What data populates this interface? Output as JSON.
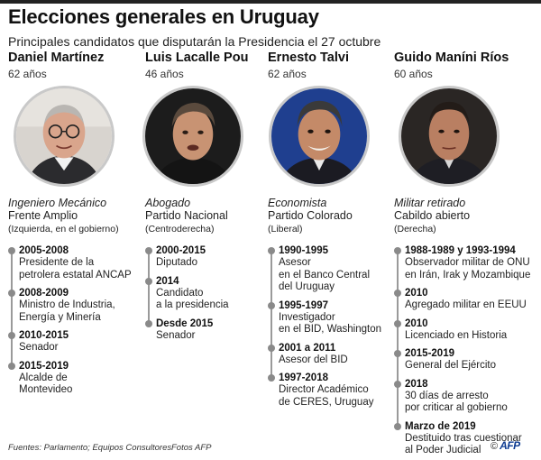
{
  "title": "Elecciones generales en Uruguay",
  "subtitle": "Principales candidatos que disputarán la Presidencia el 27 octubre",
  "candidates": [
    {
      "name": "Daniel Martínez",
      "age": "62 años",
      "profession": "Ingeniero Mecánico",
      "party": "Frente Amplio",
      "ideology": "(Izquierda, en el gobierno)",
      "events": [
        {
          "period": "2005-2008",
          "desc": "Presidente de la\npetrolera estatal ANCAP"
        },
        {
          "period": "2008-2009",
          "desc": "Ministro de Industria,\nEnergía y Minería"
        },
        {
          "period": "2010-2015",
          "desc": "Senador"
        },
        {
          "period": "2015-2019",
          "desc": "Alcalde de\nMontevideo"
        }
      ]
    },
    {
      "name": "Luis Lacalle Pou",
      "age": "46 años",
      "profession": "Abogado",
      "party": "Partido Nacional",
      "ideology": "(Centroderecha)",
      "events": [
        {
          "period": "2000-2015",
          "desc": "Diputado"
        },
        {
          "period": "2014",
          "desc": "Candidato\na la presidencia"
        },
        {
          "period": "Desde 2015",
          "desc": "Senador"
        }
      ]
    },
    {
      "name": "Ernesto Talvi",
      "age": "62 años",
      "profession": "Economista",
      "party": "Partido Colorado",
      "ideology": "(Liberal)",
      "events": [
        {
          "period": "1990-1995",
          "desc": "Asesor\nen el Banco Central\ndel Uruguay"
        },
        {
          "period": "1995-1997",
          "desc": "Investigador\nen el BID, Washington"
        },
        {
          "period": "2001 a 2011",
          "desc": "Asesor del BID"
        },
        {
          "period": "1997-2018",
          "desc": "Director Académico\nde CERES, Uruguay"
        }
      ]
    },
    {
      "name": "Guido Maníni Ríos",
      "age": "60 años",
      "profession": "Militar retirado",
      "party": "Cabildo abierto",
      "ideology": "(Derecha)",
      "events": [
        {
          "period": "1988-1989 y 1993-1994",
          "desc": "Observador militar de ONU\nen Irán, Irak y Mozambique"
        },
        {
          "period": "2010",
          "desc": "Agregado militar en EEUU"
        },
        {
          "period": "2010",
          "desc": "Licenciado en Historia"
        },
        {
          "period": "2015-2019",
          "desc": "General del Ejército"
        },
        {
          "period": "2018",
          "desc": "30 días de arresto\npor criticar al gobierno"
        },
        {
          "period": "Marzo de 2019",
          "desc": "Destituido tras cuestionar\nal Poder Judicial"
        }
      ]
    }
  ],
  "footer": {
    "sources": "Fuentes: Parlamento; Equipos Consultores",
    "photos": "Fotos AFP",
    "copyright": "©",
    "logo": "AFP"
  },
  "colors": {
    "timeline_dot": "#8a8a8a",
    "timeline_line": "#9a9a9a",
    "photo_border": "#c9c9c9"
  }
}
